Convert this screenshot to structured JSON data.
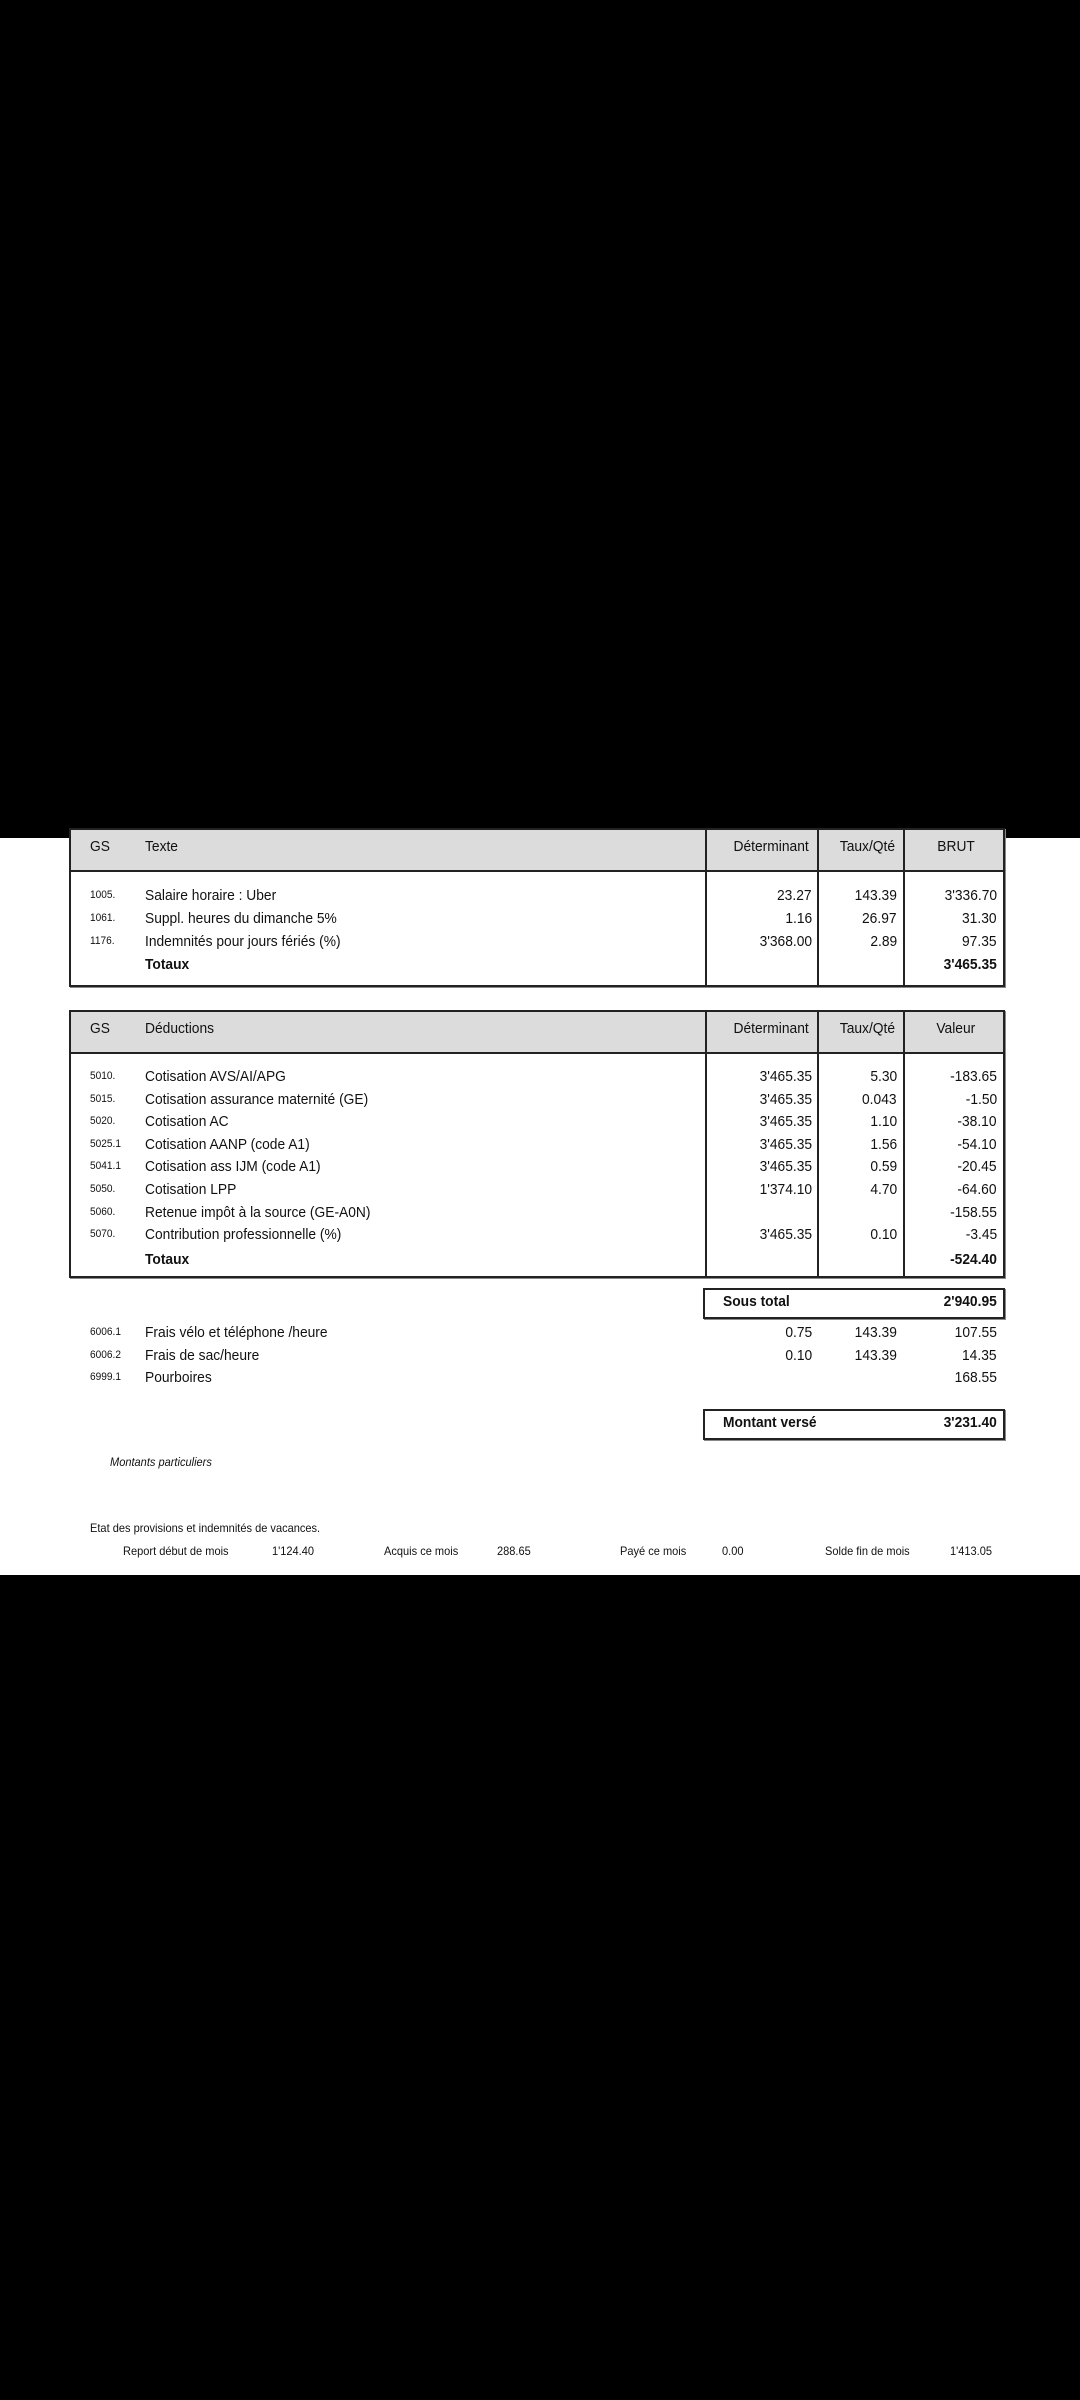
{
  "gains": {
    "headers": {
      "gs": "GS",
      "text": "Texte",
      "det": "Déterminant",
      "taux": "Taux/Qté",
      "val": "BRUT"
    },
    "rows": [
      {
        "gs": "1005.",
        "text": "Salaire horaire : Uber",
        "det": "23.27",
        "taux": "143.39",
        "val": "3'336.70"
      },
      {
        "gs": "1061.",
        "text": "Suppl. heures du dimanche 5%",
        "det": "1.16",
        "taux": "26.97",
        "val": "31.30"
      },
      {
        "gs": "1176.",
        "text": "Indemnités pour jours fériés (%)",
        "det": "3'368.00",
        "taux": "2.89",
        "val": "97.35"
      }
    ],
    "total_label": "Totaux",
    "total": "3'465.35"
  },
  "deductions": {
    "headers": {
      "gs": "GS",
      "text": "Déductions",
      "det": "Déterminant",
      "taux": "Taux/Qté",
      "val": "Valeur"
    },
    "rows": [
      {
        "gs": "5010.",
        "text": "Cotisation AVS/AI/APG",
        "det": "3'465.35",
        "taux": "5.30",
        "val": "-183.65"
      },
      {
        "gs": "5015.",
        "text": "Cotisation assurance maternité (GE)",
        "det": "3'465.35",
        "taux": "0.043",
        "val": "-1.50"
      },
      {
        "gs": "5020.",
        "text": "Cotisation AC",
        "det": "3'465.35",
        "taux": "1.10",
        "val": "-38.10"
      },
      {
        "gs": "5025.1",
        "text": "Cotisation AANP (code A1)",
        "det": "3'465.35",
        "taux": "1.56",
        "val": "-54.10"
      },
      {
        "gs": "5041.1",
        "text": "Cotisation ass IJM (code A1)",
        "det": "3'465.35",
        "taux": "0.59",
        "val": "-20.45"
      },
      {
        "gs": "5050.",
        "text": "Cotisation LPP",
        "det": "1'374.10",
        "taux": "4.70",
        "val": "-64.60"
      },
      {
        "gs": "5060.",
        "text": "Retenue impôt à la source (GE-A0N)",
        "det": "",
        "taux": "",
        "val": "-158.55"
      },
      {
        "gs": "5070.",
        "text": "Contribution professionnelle (%)",
        "det": "3'465.35",
        "taux": "0.10",
        "val": "-3.45"
      }
    ],
    "total_label": "Totaux",
    "total": "-524.40"
  },
  "subtotal": {
    "label": "Sous total",
    "value": "2'940.95"
  },
  "extras": [
    {
      "gs": "6006.1",
      "text": "Frais vélo et téléphone /heure",
      "det": "0.75",
      "taux": "143.39",
      "val": "107.55"
    },
    {
      "gs": "6006.2",
      "text": "Frais de sac/heure",
      "det": "0.10",
      "taux": "143.39",
      "val": "14.35"
    },
    {
      "gs": "6999.1",
      "text": "Pourboires",
      "det": "",
      "taux": "",
      "val": "168.55"
    }
  ],
  "paid": {
    "label": "Montant versé",
    "value": "3'231.40"
  },
  "special_label": "Montants particuliers",
  "provisions": {
    "title": "Etat des provisions et indemnités de vacances.",
    "report_label": "Report début de mois",
    "report": "1'124.40",
    "acquis_label": "Acquis ce mois",
    "acquis": "288.65",
    "paye_label": "Payé ce mois",
    "paye": "0.00",
    "solde_label": "Solde fin de mois",
    "solde": "1'413.05"
  }
}
